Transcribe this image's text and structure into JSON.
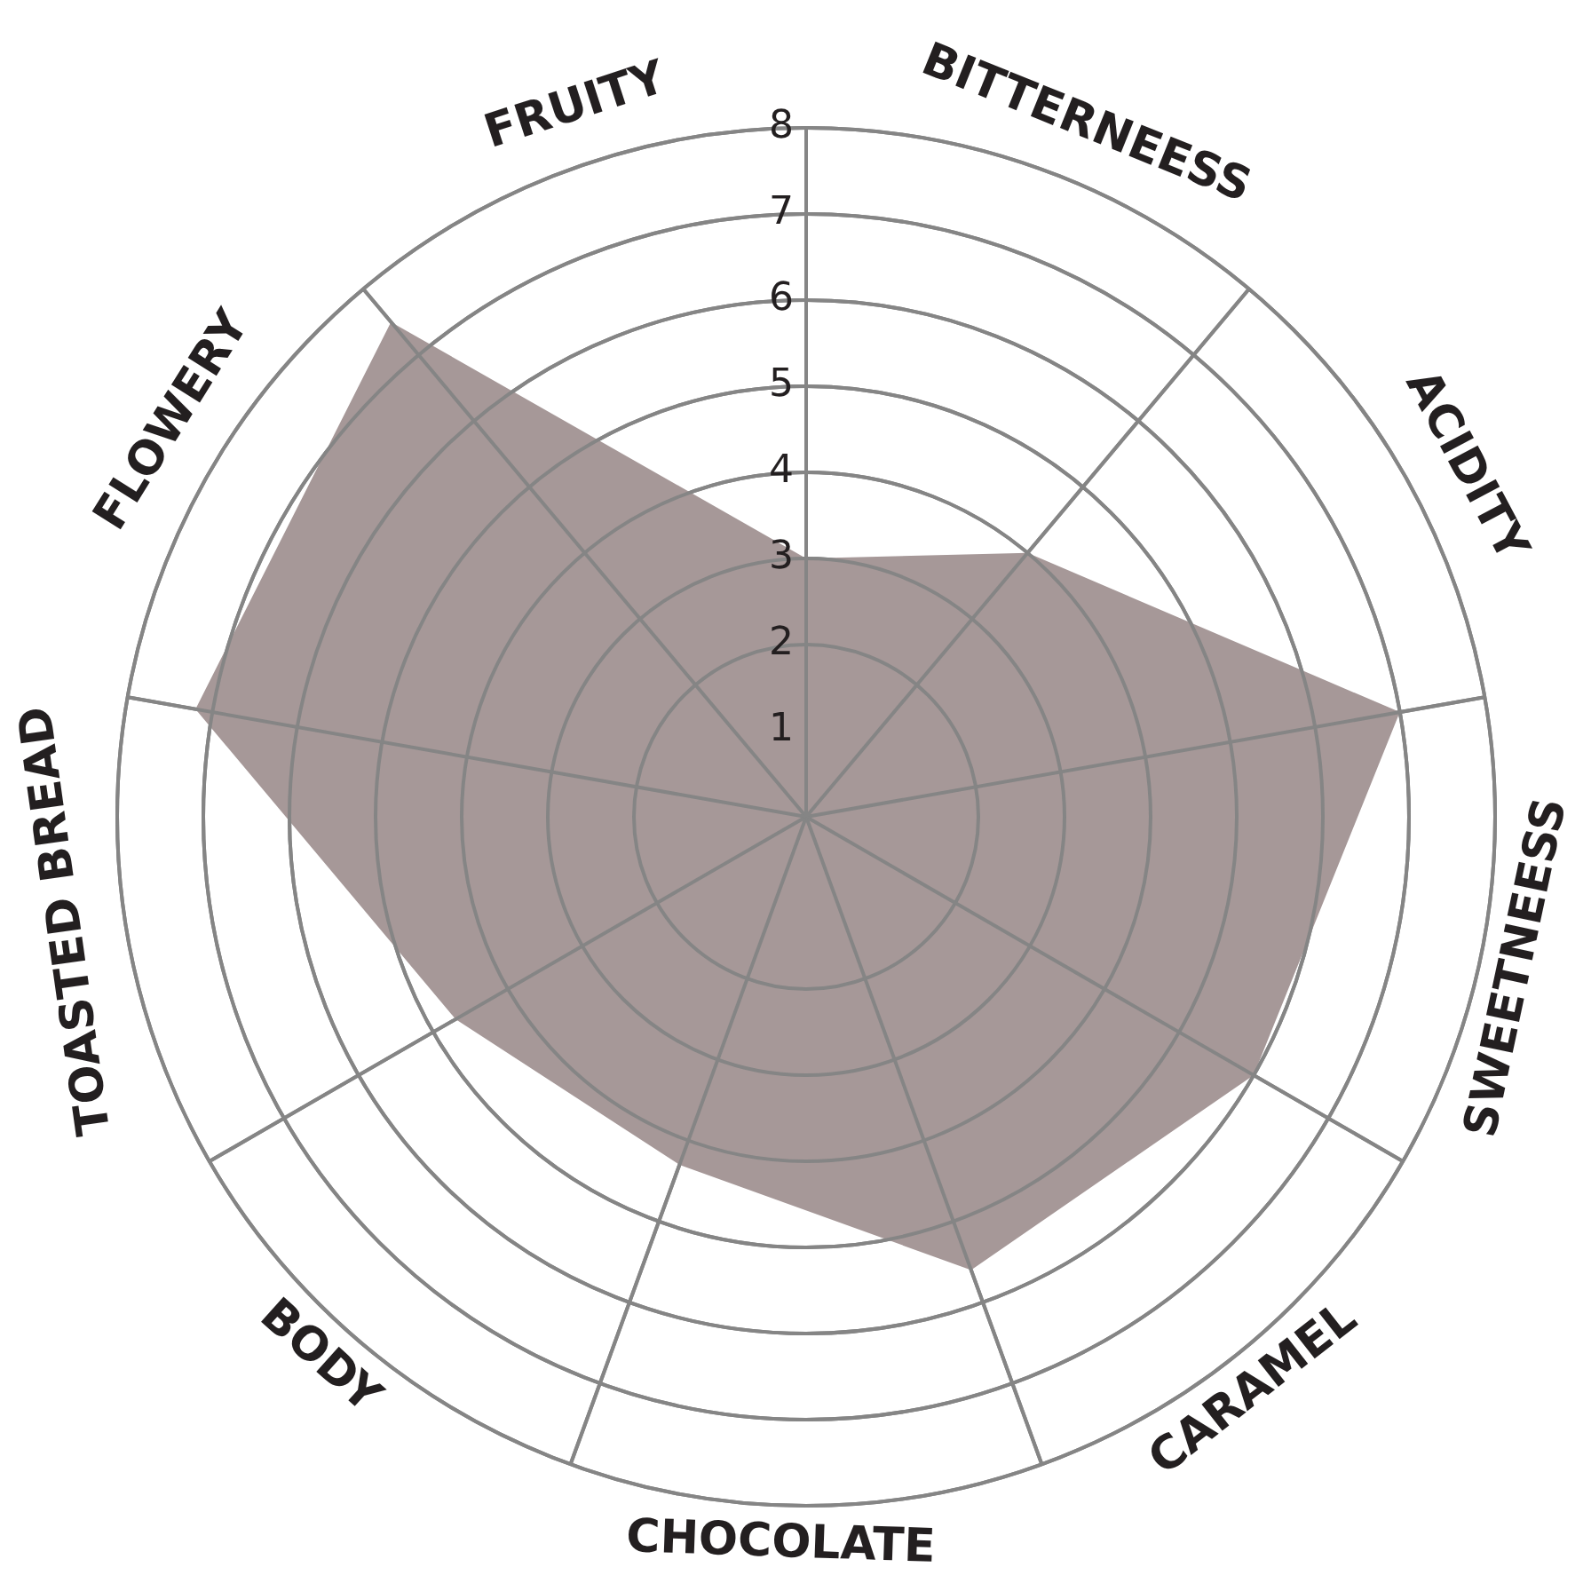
{
  "chart_data": {
    "type": "radar",
    "categories": [
      "FRUITY",
      "BITTERNEESS",
      "ACIDITY",
      "SWEETNEESS",
      "CARAMEL",
      "CHOCOLATE",
      "BODY",
      "TOASTED BREAD",
      "FLOWERY"
    ],
    "series": [
      {
        "color": "#a69898",
        "values": [
          3,
          4,
          7,
          6,
          5.6,
          4.3,
          4.7,
          7.2,
          7.5
        ]
      }
    ],
    "ylim": [
      0,
      8
    ],
    "yticks": [
      1,
      2,
      3,
      4,
      5,
      6,
      7,
      8
    ],
    "grid": true,
    "marker": "none"
  }
}
